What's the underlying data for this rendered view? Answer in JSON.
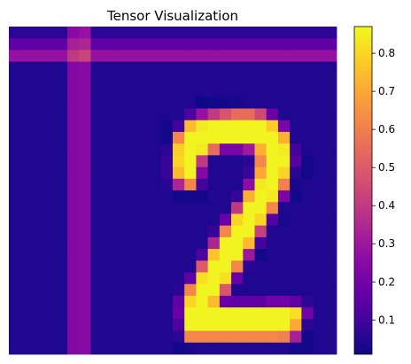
{
  "chart_data": {
    "type": "heatmap",
    "title": "Tensor Visualization",
    "colormap": "plasma",
    "value_range": [
      0.01,
      0.87
    ],
    "colorbar": {
      "ticks": [
        0.1,
        0.2,
        0.3,
        0.4,
        0.5,
        0.6,
        0.7,
        0.8
      ],
      "tick_labels": [
        "0.1",
        "0.2",
        "0.3",
        "0.4",
        "0.5",
        "0.6",
        "0.7",
        "0.8"
      ]
    },
    "grid": false,
    "rows": 28,
    "cols": 28,
    "values": [
      [
        0.06,
        0.06,
        0.06,
        0.06,
        0.06,
        0.25,
        0.28,
        0.06,
        0.06,
        0.06,
        0.06,
        0.06,
        0.06,
        0.06,
        0.06,
        0.06,
        0.06,
        0.06,
        0.06,
        0.06,
        0.06,
        0.06,
        0.06,
        0.06,
        0.06,
        0.06,
        0.06,
        0.06
      ],
      [
        0.16,
        0.16,
        0.16,
        0.16,
        0.16,
        0.32,
        0.34,
        0.16,
        0.16,
        0.16,
        0.16,
        0.16,
        0.16,
        0.16,
        0.16,
        0.16,
        0.16,
        0.16,
        0.16,
        0.16,
        0.16,
        0.16,
        0.16,
        0.16,
        0.16,
        0.16,
        0.16,
        0.16
      ],
      [
        0.28,
        0.28,
        0.28,
        0.28,
        0.28,
        0.4,
        0.43,
        0.28,
        0.28,
        0.28,
        0.28,
        0.28,
        0.28,
        0.28,
        0.28,
        0.28,
        0.28,
        0.28,
        0.28,
        0.28,
        0.28,
        0.28,
        0.28,
        0.28,
        0.28,
        0.28,
        0.28,
        0.28
      ],
      [
        0.04,
        0.04,
        0.04,
        0.04,
        0.04,
        0.24,
        0.25,
        0.04,
        0.04,
        0.04,
        0.04,
        0.04,
        0.04,
        0.04,
        0.04,
        0.04,
        0.04,
        0.04,
        0.04,
        0.04,
        0.04,
        0.04,
        0.04,
        0.04,
        0.04,
        0.04,
        0.04,
        0.04
      ],
      [
        0.04,
        0.04,
        0.04,
        0.04,
        0.04,
        0.24,
        0.25,
        0.04,
        0.04,
        0.04,
        0.04,
        0.04,
        0.04,
        0.04,
        0.04,
        0.04,
        0.04,
        0.04,
        0.04,
        0.04,
        0.04,
        0.04,
        0.04,
        0.04,
        0.04,
        0.04,
        0.04,
        0.04
      ],
      [
        0.04,
        0.04,
        0.04,
        0.04,
        0.04,
        0.24,
        0.25,
        0.04,
        0.04,
        0.04,
        0.04,
        0.04,
        0.04,
        0.04,
        0.04,
        0.04,
        0.04,
        0.04,
        0.04,
        0.04,
        0.04,
        0.04,
        0.04,
        0.04,
        0.04,
        0.04,
        0.04,
        0.04
      ],
      [
        0.04,
        0.04,
        0.04,
        0.04,
        0.04,
        0.24,
        0.25,
        0.04,
        0.04,
        0.04,
        0.04,
        0.04,
        0.04,
        0.04,
        0.04,
        0.04,
        0.01,
        0.02,
        0.02,
        0.03,
        0.04,
        0.04,
        0.04,
        0.04,
        0.04,
        0.04,
        0.04,
        0.04
      ],
      [
        0.04,
        0.04,
        0.04,
        0.04,
        0.04,
        0.24,
        0.25,
        0.04,
        0.04,
        0.04,
        0.04,
        0.04,
        0.04,
        0.04,
        0.04,
        0.12,
        0.28,
        0.4,
        0.48,
        0.55,
        0.55,
        0.45,
        0.18,
        0.04,
        0.04,
        0.04,
        0.04,
        0.04
      ],
      [
        0.04,
        0.04,
        0.04,
        0.04,
        0.04,
        0.24,
        0.25,
        0.04,
        0.04,
        0.04,
        0.04,
        0.04,
        0.04,
        0.02,
        0.1,
        0.74,
        0.84,
        0.86,
        0.86,
        0.86,
        0.86,
        0.86,
        0.78,
        0.22,
        0.04,
        0.04,
        0.04,
        0.04
      ],
      [
        0.04,
        0.04,
        0.04,
        0.04,
        0.04,
        0.24,
        0.25,
        0.04,
        0.04,
        0.04,
        0.04,
        0.04,
        0.04,
        0.02,
        0.62,
        0.86,
        0.86,
        0.86,
        0.86,
        0.86,
        0.86,
        0.86,
        0.86,
        0.72,
        0.04,
        0.04,
        0.04,
        0.04
      ],
      [
        0.04,
        0.04,
        0.04,
        0.04,
        0.04,
        0.24,
        0.25,
        0.04,
        0.04,
        0.04,
        0.04,
        0.04,
        0.04,
        0.06,
        0.78,
        0.86,
        0.84,
        0.55,
        0.22,
        0.22,
        0.3,
        0.72,
        0.86,
        0.84,
        0.1,
        0.04,
        0.04,
        0.04
      ],
      [
        0.04,
        0.04,
        0.04,
        0.04,
        0.04,
        0.24,
        0.25,
        0.04,
        0.04,
        0.04,
        0.04,
        0.04,
        0.04,
        0.08,
        0.8,
        0.86,
        0.4,
        0.04,
        0.04,
        0.04,
        0.06,
        0.62,
        0.86,
        0.86,
        0.14,
        0.02,
        0.04,
        0.04
      ],
      [
        0.04,
        0.04,
        0.04,
        0.04,
        0.04,
        0.24,
        0.25,
        0.04,
        0.04,
        0.04,
        0.04,
        0.04,
        0.04,
        0.08,
        0.74,
        0.86,
        0.24,
        0.04,
        0.04,
        0.04,
        0.08,
        0.7,
        0.86,
        0.8,
        0.06,
        0.02,
        0.04,
        0.04
      ],
      [
        0.04,
        0.04,
        0.04,
        0.04,
        0.04,
        0.24,
        0.25,
        0.04,
        0.04,
        0.04,
        0.04,
        0.04,
        0.04,
        0.06,
        0.34,
        0.62,
        0.1,
        0.04,
        0.04,
        0.04,
        0.26,
        0.84,
        0.86,
        0.6,
        0.03,
        0.04,
        0.04,
        0.04
      ],
      [
        0.04,
        0.04,
        0.04,
        0.04,
        0.04,
        0.24,
        0.25,
        0.04,
        0.04,
        0.04,
        0.04,
        0.04,
        0.04,
        0.04,
        0.02,
        0.02,
        0.02,
        0.04,
        0.04,
        0.08,
        0.72,
        0.86,
        0.84,
        0.22,
        0.02,
        0.04,
        0.04,
        0.04
      ],
      [
        0.04,
        0.04,
        0.04,
        0.04,
        0.04,
        0.24,
        0.25,
        0.04,
        0.04,
        0.04,
        0.04,
        0.04,
        0.04,
        0.04,
        0.04,
        0.04,
        0.04,
        0.04,
        0.04,
        0.4,
        0.86,
        0.86,
        0.62,
        0.04,
        0.04,
        0.04,
        0.04,
        0.04
      ],
      [
        0.04,
        0.04,
        0.04,
        0.04,
        0.04,
        0.24,
        0.25,
        0.04,
        0.04,
        0.04,
        0.04,
        0.04,
        0.04,
        0.04,
        0.04,
        0.04,
        0.04,
        0.04,
        0.18,
        0.8,
        0.86,
        0.8,
        0.14,
        0.03,
        0.04,
        0.04,
        0.04,
        0.04
      ],
      [
        0.04,
        0.04,
        0.04,
        0.04,
        0.04,
        0.24,
        0.25,
        0.04,
        0.04,
        0.04,
        0.04,
        0.04,
        0.04,
        0.04,
        0.04,
        0.04,
        0.04,
        0.08,
        0.62,
        0.86,
        0.86,
        0.42,
        0.04,
        0.04,
        0.04,
        0.04,
        0.04,
        0.04
      ],
      [
        0.04,
        0.04,
        0.04,
        0.04,
        0.04,
        0.24,
        0.25,
        0.04,
        0.04,
        0.04,
        0.04,
        0.04,
        0.04,
        0.04,
        0.04,
        0.04,
        0.04,
        0.34,
        0.86,
        0.86,
        0.74,
        0.1,
        0.04,
        0.04,
        0.04,
        0.04,
        0.04,
        0.04
      ],
      [
        0.04,
        0.04,
        0.04,
        0.04,
        0.04,
        0.24,
        0.25,
        0.04,
        0.04,
        0.04,
        0.04,
        0.04,
        0.04,
        0.04,
        0.04,
        0.04,
        0.12,
        0.76,
        0.86,
        0.86,
        0.3,
        0.02,
        0.04,
        0.04,
        0.04,
        0.04,
        0.04,
        0.04
      ],
      [
        0.04,
        0.04,
        0.04,
        0.04,
        0.04,
        0.24,
        0.25,
        0.04,
        0.04,
        0.04,
        0.04,
        0.04,
        0.04,
        0.04,
        0.04,
        0.04,
        0.5,
        0.86,
        0.86,
        0.62,
        0.06,
        0.04,
        0.04,
        0.04,
        0.04,
        0.04,
        0.04,
        0.04
      ],
      [
        0.04,
        0.04,
        0.04,
        0.04,
        0.04,
        0.24,
        0.25,
        0.04,
        0.04,
        0.04,
        0.04,
        0.04,
        0.04,
        0.04,
        0.04,
        0.16,
        0.82,
        0.86,
        0.82,
        0.18,
        0.04,
        0.04,
        0.04,
        0.04,
        0.04,
        0.04,
        0.04,
        0.04
      ],
      [
        0.04,
        0.04,
        0.04,
        0.04,
        0.04,
        0.24,
        0.25,
        0.04,
        0.04,
        0.04,
        0.04,
        0.04,
        0.04,
        0.04,
        0.06,
        0.62,
        0.86,
        0.86,
        0.48,
        0.04,
        0.04,
        0.04,
        0.04,
        0.04,
        0.04,
        0.04,
        0.04,
        0.04
      ],
      [
        0.04,
        0.04,
        0.04,
        0.04,
        0.04,
        0.24,
        0.25,
        0.04,
        0.04,
        0.04,
        0.04,
        0.04,
        0.04,
        0.04,
        0.16,
        0.8,
        0.86,
        0.74,
        0.18,
        0.16,
        0.16,
        0.16,
        0.2,
        0.2,
        0.16,
        0.06,
        0.04,
        0.04
      ],
      [
        0.04,
        0.04,
        0.04,
        0.04,
        0.04,
        0.24,
        0.25,
        0.04,
        0.04,
        0.04,
        0.04,
        0.04,
        0.04,
        0.04,
        0.18,
        0.86,
        0.86,
        0.86,
        0.86,
        0.86,
        0.86,
        0.86,
        0.86,
        0.86,
        0.82,
        0.2,
        0.04,
        0.04
      ],
      [
        0.04,
        0.04,
        0.04,
        0.04,
        0.04,
        0.24,
        0.25,
        0.04,
        0.04,
        0.04,
        0.04,
        0.04,
        0.04,
        0.04,
        0.12,
        0.86,
        0.86,
        0.86,
        0.86,
        0.86,
        0.86,
        0.86,
        0.86,
        0.86,
        0.7,
        0.06,
        0.04,
        0.04
      ],
      [
        0.04,
        0.04,
        0.04,
        0.04,
        0.04,
        0.24,
        0.25,
        0.04,
        0.04,
        0.04,
        0.04,
        0.04,
        0.04,
        0.04,
        0.06,
        0.62,
        0.62,
        0.62,
        0.62,
        0.62,
        0.62,
        0.62,
        0.62,
        0.6,
        0.32,
        0.02,
        0.04,
        0.04
      ],
      [
        0.04,
        0.04,
        0.04,
        0.04,
        0.04,
        0.24,
        0.25,
        0.04,
        0.04,
        0.04,
        0.04,
        0.04,
        0.04,
        0.04,
        0.02,
        0.03,
        0.04,
        0.04,
        0.04,
        0.04,
        0.04,
        0.04,
        0.04,
        0.04,
        0.02,
        0.02,
        0.04,
        0.04
      ]
    ]
  }
}
